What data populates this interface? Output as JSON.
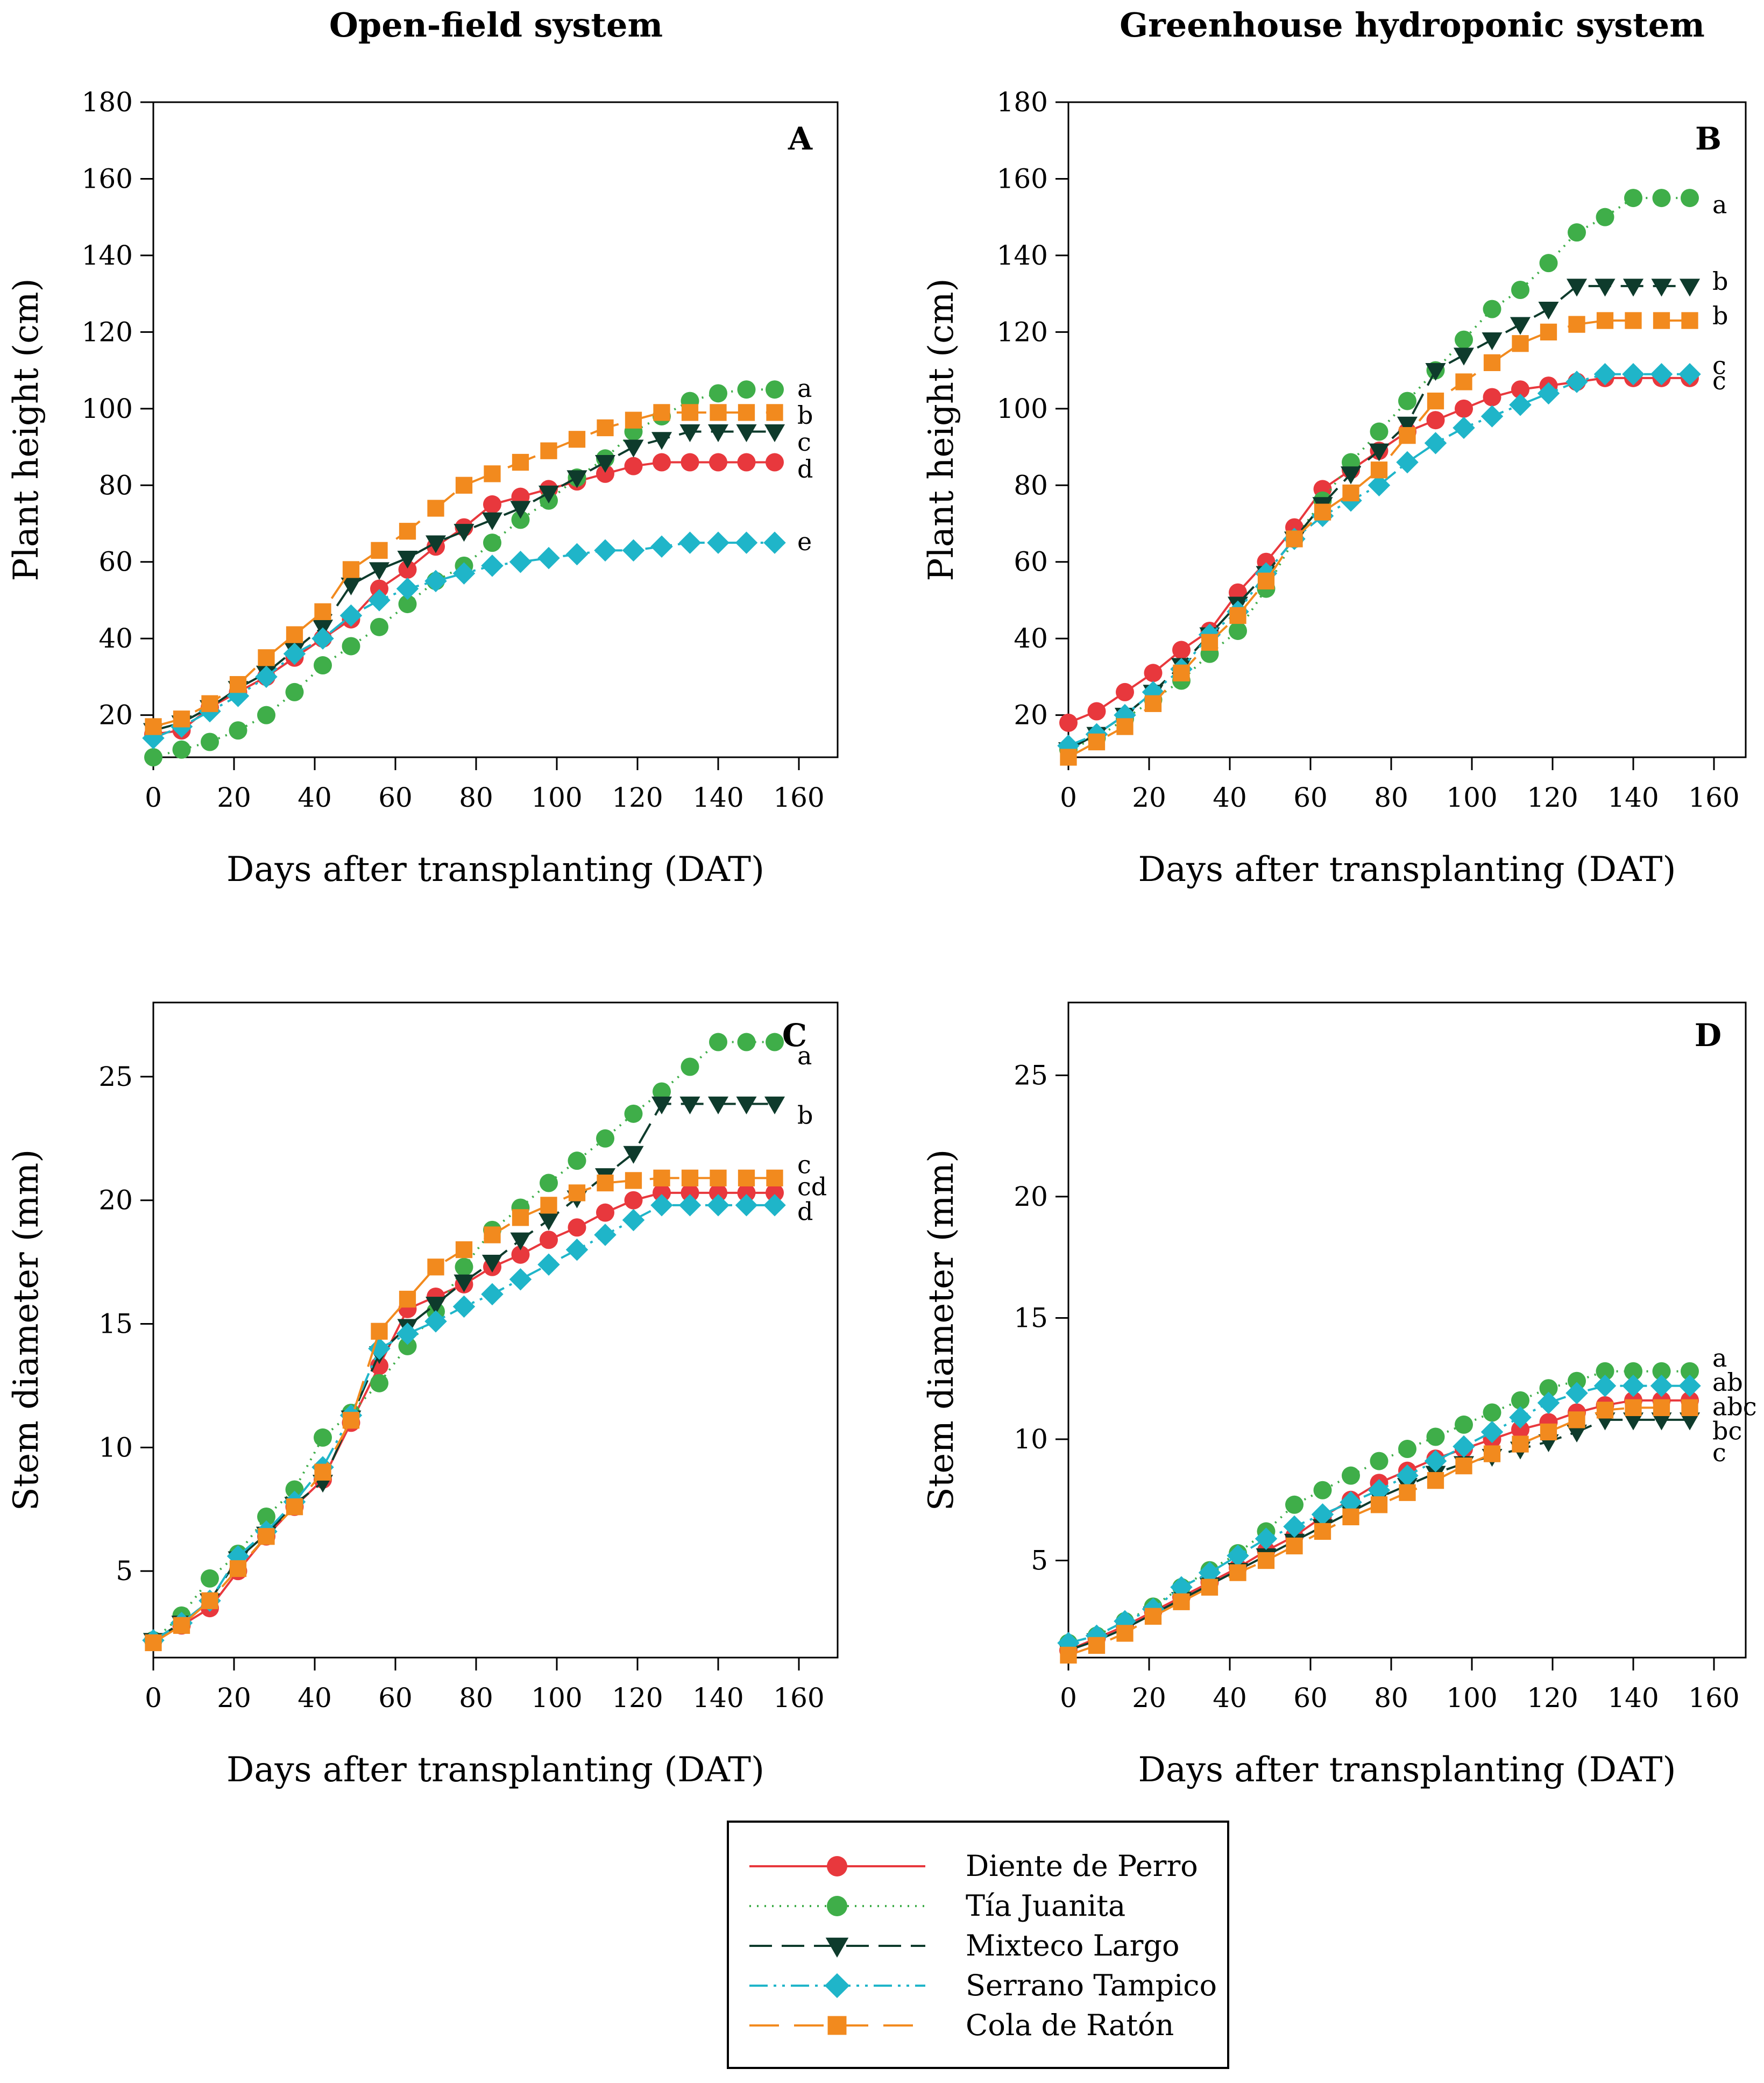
{
  "column_titles": [
    "Open-field system",
    "Greenhouse hydroponic system"
  ],
  "legend": {
    "entries": [
      {
        "name": "Diente de Perro",
        "color": "#e8383d",
        "marker": "circle",
        "dash": "solid"
      },
      {
        "name": "Tía Juanita",
        "color": "#3fae49",
        "marker": "circle",
        "dash": "dotted"
      },
      {
        "name": "Mixteco Largo",
        "color": "#0e3b2c",
        "marker": "triangle-down",
        "dash": "dashed"
      },
      {
        "name": "Serrano Tampico",
        "color": "#1fb5c9",
        "marker": "diamond",
        "dash": "dashdotdot"
      },
      {
        "name": "Cola de Ratón",
        "color": "#f28a1e",
        "marker": "square",
        "dash": "longdash"
      }
    ]
  },
  "chart_data": [
    {
      "panel": "A",
      "type": "line",
      "xlabel": "Days after transplanting (DAT)",
      "ylabel": "Plant height (cm)",
      "xlim": [
        0,
        170
      ],
      "ylim": [
        9,
        180
      ],
      "xticks": [
        0,
        20,
        40,
        60,
        80,
        100,
        120,
        140,
        160
      ],
      "yticks": [
        20,
        40,
        60,
        80,
        100,
        120,
        140,
        160,
        180
      ],
      "x": [
        0,
        7,
        14,
        21,
        28,
        35,
        42,
        49,
        56,
        63,
        70,
        77,
        84,
        91,
        98,
        105,
        112,
        119,
        126,
        133,
        140,
        147,
        154
      ],
      "series": [
        {
          "name": "Diente de Perro",
          "values": [
            15,
            16,
            22,
            26,
            30,
            35,
            40,
            45,
            53,
            58,
            64,
            69,
            75,
            77,
            79,
            81,
            83,
            85,
            86,
            86,
            86,
            86,
            86
          ]
        },
        {
          "name": "Tía Juanita",
          "values": [
            9,
            11,
            13,
            16,
            20,
            26,
            33,
            38,
            43,
            49,
            55,
            59,
            65,
            71,
            76,
            82,
            87,
            94,
            98,
            102,
            104,
            105,
            105
          ]
        },
        {
          "name": "Mixteco Largo",
          "values": [
            16,
            18,
            22,
            27,
            31,
            37,
            43,
            54,
            58,
            61,
            65,
            68,
            71,
            74,
            78,
            82,
            86,
            90,
            92,
            94,
            94,
            94,
            94
          ]
        },
        {
          "name": "Serrano Tampico",
          "values": [
            14,
            17,
            21,
            25,
            30,
            36,
            40,
            46,
            50,
            53,
            55,
            57,
            59,
            60,
            61,
            62,
            63,
            63,
            64,
            65,
            65,
            65,
            65
          ]
        },
        {
          "name": "Cola de Ratón",
          "values": [
            17,
            19,
            23,
            28,
            35,
            41,
            47,
            58,
            63,
            68,
            74,
            80,
            83,
            86,
            89,
            92,
            95,
            97,
            99,
            99,
            99,
            99,
            99
          ]
        }
      ],
      "significance": [
        {
          "label": "a",
          "y": 105
        },
        {
          "label": "b",
          "y": 98
        },
        {
          "label": "c",
          "y": 91
        },
        {
          "label": "d",
          "y": 84
        },
        {
          "label": "e",
          "y": 65
        }
      ]
    },
    {
      "panel": "B",
      "type": "line",
      "xlabel": "Days after transplanting (DAT)",
      "ylabel": "Plant height (cm)",
      "xlim": [
        0,
        170
      ],
      "ylim": [
        9,
        180
      ],
      "xticks": [
        0,
        20,
        40,
        60,
        80,
        100,
        120,
        140,
        160
      ],
      "yticks": [
        20,
        40,
        60,
        80,
        100,
        120,
        140,
        160,
        180
      ],
      "x": [
        0,
        7,
        14,
        21,
        28,
        35,
        42,
        49,
        56,
        63,
        70,
        77,
        84,
        91,
        98,
        105,
        112,
        119,
        126,
        133,
        140,
        147,
        154
      ],
      "series": [
        {
          "name": "Diente de Perro",
          "values": [
            18,
            21,
            26,
            31,
            37,
            42,
            52,
            60,
            69,
            79,
            84,
            89,
            94,
            97,
            100,
            103,
            105,
            106,
            107,
            108,
            108,
            108,
            108
          ]
        },
        {
          "name": "Tía Juanita",
          "values": [
            11,
            14,
            19,
            24,
            29,
            36,
            42,
            53,
            66,
            76,
            86,
            94,
            102,
            110,
            118,
            126,
            131,
            138,
            146,
            150,
            155,
            155,
            155
          ]
        },
        {
          "name": "Mixteco Largo",
          "values": [
            11,
            15,
            20,
            26,
            33,
            41,
            49,
            57,
            66,
            75,
            83,
            89,
            96,
            110,
            114,
            118,
            122,
            126,
            132,
            132,
            132,
            132,
            132
          ]
        },
        {
          "name": "Serrano Tampico",
          "values": [
            12,
            15,
            20,
            26,
            32,
            41,
            47,
            57,
            66,
            72,
            76,
            80,
            86,
            91,
            95,
            98,
            101,
            104,
            107,
            109,
            109,
            109,
            109
          ]
        },
        {
          "name": "Cola de Ratón",
          "values": [
            9,
            13,
            17,
            23,
            31,
            39,
            46,
            55,
            66,
            73,
            78,
            84,
            93,
            102,
            107,
            112,
            117,
            120,
            122,
            123,
            123,
            123,
            123
          ]
        }
      ],
      "significance": [
        {
          "label": "a",
          "y": 153
        },
        {
          "label": "b",
          "y": 133
        },
        {
          "label": "b",
          "y": 124
        },
        {
          "label": "c",
          "y": 111
        },
        {
          "label": "c",
          "y": 107
        }
      ]
    },
    {
      "panel": "C",
      "type": "line",
      "xlabel": "Days after transplanting (DAT)",
      "ylabel": "Stem diameter (mm)",
      "xlim": [
        0,
        170
      ],
      "ylim": [
        1.5,
        28
      ],
      "xticks": [
        0,
        20,
        40,
        60,
        80,
        100,
        120,
        140,
        160
      ],
      "yticks": [
        5,
        10,
        15,
        20,
        25
      ],
      "x": [
        0,
        7,
        14,
        21,
        28,
        35,
        42,
        49,
        56,
        63,
        70,
        77,
        84,
        91,
        98,
        105,
        112,
        119,
        126,
        133,
        140,
        147,
        154
      ],
      "series": [
        {
          "name": "Diente de Perro",
          "values": [
            2.2,
            2.8,
            3.5,
            5.0,
            6.4,
            7.6,
            8.7,
            11.0,
            13.3,
            15.6,
            16.1,
            16.6,
            17.3,
            17.8,
            18.4,
            18.9,
            19.5,
            20.0,
            20.3,
            20.3,
            20.3,
            20.3,
            20.3
          ]
        },
        {
          "name": "Tía Juanita",
          "values": [
            2.2,
            3.2,
            4.7,
            5.7,
            7.2,
            8.3,
            10.4,
            11.4,
            12.6,
            14.1,
            15.5,
            17.3,
            18.8,
            19.7,
            20.7,
            21.6,
            22.5,
            23.5,
            24.4,
            25.4,
            26.4,
            26.4,
            26.4
          ]
        },
        {
          "name": "Mixteco Largo",
          "values": [
            2.2,
            2.9,
            3.8,
            5.5,
            6.5,
            7.7,
            8.6,
            11.2,
            13.8,
            14.9,
            15.8,
            16.7,
            17.5,
            18.4,
            19.2,
            20.1,
            21.0,
            21.9,
            23.9,
            23.9,
            23.9,
            23.9,
            23.9
          ]
        },
        {
          "name": "Serrano Tampico",
          "values": [
            2.2,
            2.9,
            3.8,
            5.6,
            6.6,
            7.8,
            9.2,
            11.3,
            14.0,
            14.6,
            15.1,
            15.7,
            16.2,
            16.8,
            17.4,
            18.0,
            18.6,
            19.2,
            19.8,
            19.8,
            19.8,
            19.8,
            19.8
          ]
        },
        {
          "name": "Cola de Ratón",
          "values": [
            2.1,
            2.8,
            3.8,
            5.1,
            6.4,
            7.6,
            9.0,
            11.1,
            14.7,
            16.0,
            17.3,
            18.0,
            18.6,
            19.3,
            19.8,
            20.3,
            20.7,
            20.8,
            20.9,
            20.9,
            20.9,
            20.9,
            20.9
          ]
        }
      ],
      "significance": [
        {
          "label": "a",
          "y": 25.8
        },
        {
          "label": "b",
          "y": 23.4
        },
        {
          "label": "c",
          "y": 21.4
        },
        {
          "label": "cd",
          "y": 20.5
        },
        {
          "label": "d",
          "y": 19.5
        }
      ]
    },
    {
      "panel": "D",
      "type": "line",
      "xlabel": "Days after transplanting (DAT)",
      "ylabel": "Stem diameter (mm)",
      "xlim": [
        0,
        170
      ],
      "ylim": [
        1,
        28
      ],
      "xticks": [
        0,
        20,
        40,
        60,
        80,
        100,
        120,
        140,
        160
      ],
      "yticks": [
        5,
        10,
        15,
        20,
        25
      ],
      "x": [
        0,
        7,
        14,
        21,
        28,
        35,
        42,
        49,
        56,
        63,
        70,
        77,
        84,
        91,
        98,
        105,
        112,
        119,
        126,
        133,
        140,
        147,
        154
      ],
      "series": [
        {
          "name": "Diente de Perro",
          "values": [
            1.3,
            1.8,
            2.3,
            2.9,
            3.5,
            4.1,
            4.7,
            5.4,
            6.0,
            6.8,
            7.5,
            8.2,
            8.7,
            9.2,
            9.6,
            10.0,
            10.4,
            10.7,
            11.1,
            11.4,
            11.6,
            11.6,
            11.6
          ]
        },
        {
          "name": "Tía Juanita",
          "values": [
            1.6,
            1.9,
            2.5,
            3.1,
            3.9,
            4.6,
            5.3,
            6.2,
            7.3,
            7.9,
            8.5,
            9.1,
            9.6,
            10.1,
            10.6,
            11.1,
            11.6,
            12.1,
            12.4,
            12.8,
            12.8,
            12.8,
            12.8
          ]
        },
        {
          "name": "Mixteco Largo",
          "values": [
            1.3,
            1.7,
            2.2,
            2.8,
            3.4,
            4.0,
            4.6,
            5.2,
            5.8,
            6.4,
            7.0,
            7.6,
            8.1,
            8.6,
            9.0,
            9.3,
            9.6,
            9.9,
            10.3,
            10.8,
            10.8,
            10.8,
            10.8
          ]
        },
        {
          "name": "Serrano Tampico",
          "values": [
            1.6,
            1.9,
            2.5,
            3.0,
            3.9,
            4.5,
            5.2,
            5.9,
            6.4,
            6.9,
            7.4,
            7.9,
            8.5,
            9.1,
            9.7,
            10.3,
            10.9,
            11.5,
            11.9,
            12.2,
            12.2,
            12.2,
            12.2
          ]
        },
        {
          "name": "Cola de Ratón",
          "values": [
            1.1,
            1.5,
            2.0,
            2.7,
            3.3,
            3.9,
            4.5,
            5.0,
            5.6,
            6.2,
            6.8,
            7.3,
            7.8,
            8.3,
            8.9,
            9.4,
            9.8,
            10.3,
            10.8,
            11.2,
            11.3,
            11.3,
            11.3
          ]
        }
      ],
      "significance": [
        {
          "label": "a",
          "y": 13.3
        },
        {
          "label": "ab",
          "y": 12.3
        },
        {
          "label": "abc",
          "y": 11.3
        },
        {
          "label": "bc",
          "y": 10.3
        },
        {
          "label": "c",
          "y": 9.4
        }
      ]
    }
  ]
}
